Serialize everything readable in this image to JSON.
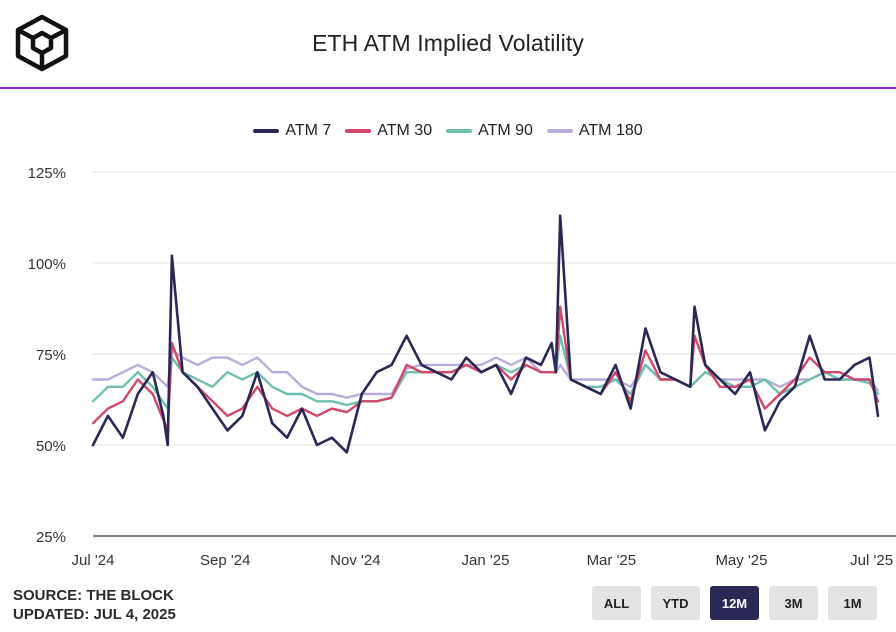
{
  "header": {
    "title": "ETH ATM Implied Volatility"
  },
  "footer": {
    "source": "SOURCE: THE BLOCK",
    "updated": "UPDATED: JUL 4, 2025"
  },
  "ranges": {
    "items": [
      "ALL",
      "YTD",
      "12M",
      "3M",
      "1M"
    ],
    "active": "12M"
  },
  "colors": {
    "accent": "#8c24c4",
    "atm7": "#2a2856",
    "atm30": "#d2476a",
    "atm90": "#6fbfae",
    "atm180": "#b9acdc"
  },
  "chart_data": {
    "type": "line",
    "title": "ETH ATM Implied Volatility",
    "x_range": [
      "2024-07-01",
      "2025-07-04"
    ],
    "ylim": [
      25,
      125
    ],
    "y_ticks": [
      25,
      50,
      75,
      100,
      125
    ],
    "y_tick_labels": [
      "25%",
      "50%",
      "75%",
      "100%",
      "125%"
    ],
    "x_ticks": [
      "2024-07-01",
      "2024-09-01",
      "2024-11-01",
      "2025-01-01",
      "2025-03-01",
      "2025-05-01",
      "2025-07-01"
    ],
    "x_tick_labels": [
      "Jul '24",
      "Sep '24",
      "Nov '24",
      "Jan '25",
      "Mar '25",
      "May '25",
      "Jul '25"
    ],
    "grid": true,
    "legend": "top-center",
    "series": [
      {
        "name": "ATM 7",
        "x": [
          "2024-07-01",
          "2024-07-08",
          "2024-07-15",
          "2024-07-22",
          "2024-07-29",
          "2024-08-03",
          "2024-08-05",
          "2024-08-07",
          "2024-08-12",
          "2024-08-19",
          "2024-08-26",
          "2024-09-02",
          "2024-09-09",
          "2024-09-16",
          "2024-09-23",
          "2024-09-30",
          "2024-10-07",
          "2024-10-14",
          "2024-10-21",
          "2024-10-28",
          "2024-11-04",
          "2024-11-11",
          "2024-11-18",
          "2024-11-25",
          "2024-12-02",
          "2024-12-09",
          "2024-12-16",
          "2024-12-23",
          "2024-12-30",
          "2025-01-06",
          "2025-01-13",
          "2025-01-20",
          "2025-01-27",
          "2025-02-01",
          "2025-02-03",
          "2025-02-05",
          "2025-02-10",
          "2025-02-17",
          "2025-02-24",
          "2025-03-03",
          "2025-03-10",
          "2025-03-17",
          "2025-03-24",
          "2025-03-31",
          "2025-04-07",
          "2025-04-09",
          "2025-04-14",
          "2025-04-21",
          "2025-04-28",
          "2025-05-05",
          "2025-05-12",
          "2025-05-19",
          "2025-05-26",
          "2025-06-02",
          "2025-06-09",
          "2025-06-16",
          "2025-06-23",
          "2025-06-30",
          "2025-07-04"
        ],
        "y": [
          50,
          58,
          52,
          64,
          70,
          58,
          50,
          102,
          70,
          66,
          60,
          54,
          58,
          70,
          56,
          52,
          60,
          50,
          52,
          48,
          64,
          70,
          72,
          80,
          72,
          70,
          68,
          74,
          70,
          72,
          64,
          74,
          72,
          78,
          70,
          113,
          68,
          66,
          64,
          72,
          60,
          82,
          70,
          68,
          66,
          88,
          72,
          68,
          64,
          70,
          54,
          62,
          66,
          80,
          68,
          68,
          72,
          74,
          58
        ]
      },
      {
        "name": "ATM 30",
        "x": [
          "2024-07-01",
          "2024-07-08",
          "2024-07-15",
          "2024-07-22",
          "2024-07-29",
          "2024-08-05",
          "2024-08-07",
          "2024-08-12",
          "2024-08-19",
          "2024-08-26",
          "2024-09-02",
          "2024-09-09",
          "2024-09-16",
          "2024-09-23",
          "2024-09-30",
          "2024-10-07",
          "2024-10-14",
          "2024-10-21",
          "2024-10-28",
          "2024-11-04",
          "2024-11-11",
          "2024-11-18",
          "2024-11-25",
          "2024-12-02",
          "2024-12-09",
          "2024-12-16",
          "2024-12-23",
          "2024-12-30",
          "2025-01-06",
          "2025-01-13",
          "2025-01-20",
          "2025-01-27",
          "2025-02-03",
          "2025-02-05",
          "2025-02-10",
          "2025-02-17",
          "2025-02-24",
          "2025-03-03",
          "2025-03-10",
          "2025-03-17",
          "2025-03-24",
          "2025-03-31",
          "2025-04-07",
          "2025-04-09",
          "2025-04-14",
          "2025-04-21",
          "2025-04-28",
          "2025-05-05",
          "2025-05-12",
          "2025-05-19",
          "2025-05-26",
          "2025-06-02",
          "2025-06-09",
          "2025-06-16",
          "2025-06-23",
          "2025-06-30",
          "2025-07-04"
        ],
        "y": [
          56,
          60,
          62,
          68,
          64,
          54,
          78,
          70,
          66,
          62,
          58,
          60,
          66,
          60,
          58,
          60,
          58,
          60,
          59,
          62,
          62,
          63,
          72,
          70,
          70,
          70,
          72,
          70,
          72,
          68,
          72,
          70,
          70,
          88,
          68,
          66,
          64,
          70,
          62,
          76,
          68,
          68,
          66,
          80,
          72,
          66,
          66,
          68,
          60,
          64,
          68,
          74,
          70,
          70,
          68,
          68,
          62
        ]
      },
      {
        "name": "ATM 90",
        "x": [
          "2024-07-01",
          "2024-07-08",
          "2024-07-15",
          "2024-07-22",
          "2024-07-29",
          "2024-08-05",
          "2024-08-07",
          "2024-08-12",
          "2024-08-19",
          "2024-08-26",
          "2024-09-02",
          "2024-09-09",
          "2024-09-16",
          "2024-09-23",
          "2024-09-30",
          "2024-10-07",
          "2024-10-14",
          "2024-10-21",
          "2024-10-28",
          "2024-11-04",
          "2024-11-11",
          "2024-11-18",
          "2024-11-25",
          "2024-12-02",
          "2024-12-09",
          "2024-12-16",
          "2024-12-23",
          "2024-12-30",
          "2025-01-06",
          "2025-01-13",
          "2025-01-20",
          "2025-01-27",
          "2025-02-03",
          "2025-02-05",
          "2025-02-10",
          "2025-02-17",
          "2025-02-24",
          "2025-03-03",
          "2025-03-10",
          "2025-03-17",
          "2025-03-24",
          "2025-03-31",
          "2025-04-07",
          "2025-04-14",
          "2025-04-21",
          "2025-04-28",
          "2025-05-05",
          "2025-05-12",
          "2025-05-19",
          "2025-05-26",
          "2025-06-02",
          "2025-06-09",
          "2025-06-16",
          "2025-06-23",
          "2025-06-30",
          "2025-07-04"
        ],
        "y": [
          62,
          66,
          66,
          70,
          66,
          60,
          74,
          70,
          68,
          66,
          70,
          68,
          70,
          66,
          64,
          64,
          62,
          62,
          61,
          62,
          62,
          63,
          70,
          70,
          70,
          70,
          72,
          70,
          72,
          70,
          72,
          70,
          70,
          80,
          68,
          66,
          66,
          68,
          64,
          72,
          68,
          68,
          66,
          70,
          68,
          66,
          66,
          68,
          64,
          66,
          68,
          70,
          68,
          68,
          67,
          64
        ]
      },
      {
        "name": "ATM 180",
        "x": [
          "2024-07-01",
          "2024-07-08",
          "2024-07-15",
          "2024-07-22",
          "2024-07-29",
          "2024-08-05",
          "2024-08-07",
          "2024-08-12",
          "2024-08-19",
          "2024-08-26",
          "2024-09-02",
          "2024-09-09",
          "2024-09-16",
          "2024-09-23",
          "2024-09-30",
          "2024-10-07",
          "2024-10-14",
          "2024-10-21",
          "2024-10-28",
          "2024-11-04",
          "2024-11-11",
          "2024-11-18",
          "2024-11-25",
          "2024-12-02",
          "2024-12-09",
          "2024-12-16",
          "2024-12-23",
          "2024-12-30",
          "2025-01-06",
          "2025-01-13",
          "2025-01-20",
          "2025-01-27",
          "2025-02-03",
          "2025-02-05",
          "2025-02-10",
          "2025-02-17",
          "2025-02-24",
          "2025-03-03",
          "2025-03-10",
          "2025-03-17",
          "2025-03-24",
          "2025-03-31",
          "2025-04-07",
          "2025-04-14",
          "2025-04-21",
          "2025-04-28",
          "2025-05-05",
          "2025-05-12",
          "2025-05-19",
          "2025-05-26",
          "2025-06-02",
          "2025-06-09",
          "2025-06-16",
          "2025-06-23",
          "2025-06-30",
          "2025-07-04"
        ],
        "y": [
          68,
          68,
          70,
          72,
          70,
          66,
          76,
          74,
          72,
          74,
          74,
          72,
          74,
          70,
          70,
          66,
          64,
          64,
          63,
          64,
          64,
          64,
          71,
          72,
          72,
          72,
          72,
          72,
          74,
          72,
          74,
          70,
          70,
          72,
          68,
          68,
          68,
          68,
          66,
          72,
          68,
          68,
          66,
          70,
          68,
          68,
          68,
          68,
          66,
          68,
          68,
          70,
          68,
          68,
          68,
          65
        ]
      }
    ]
  }
}
